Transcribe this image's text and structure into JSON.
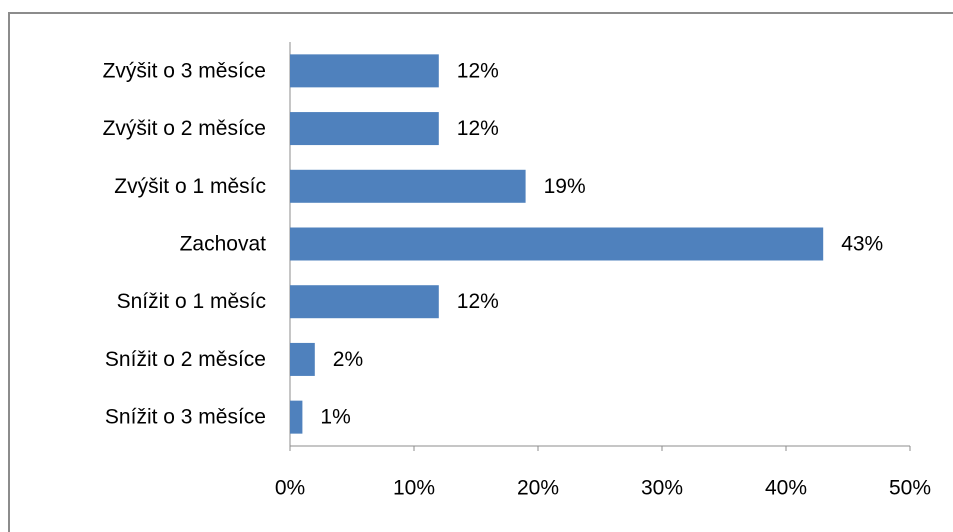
{
  "chart_data": {
    "type": "bar",
    "orientation": "horizontal",
    "categories": [
      "Zvýšit o 3 měsíce",
      "Zvýšit o 2 měsíce",
      "Zvýšit o 1 měsíc",
      "Zachovat",
      "Snížit o 1 měsíc",
      "Snížit o 2 měsíce",
      "Snížit o 3 měsíce"
    ],
    "values": [
      12,
      12,
      19,
      43,
      12,
      2,
      1
    ],
    "value_labels": [
      "12%",
      "12%",
      "19%",
      "43%",
      "12%",
      "2%",
      "1%"
    ],
    "xlim": [
      0,
      50
    ],
    "x_ticks": [
      0,
      10,
      20,
      30,
      40,
      50
    ],
    "x_tick_labels": [
      "0%",
      "10%",
      "20%",
      "30%",
      "40%",
      "50%"
    ],
    "bar_color": "#4f81bd",
    "grid": false,
    "legend": "none"
  }
}
